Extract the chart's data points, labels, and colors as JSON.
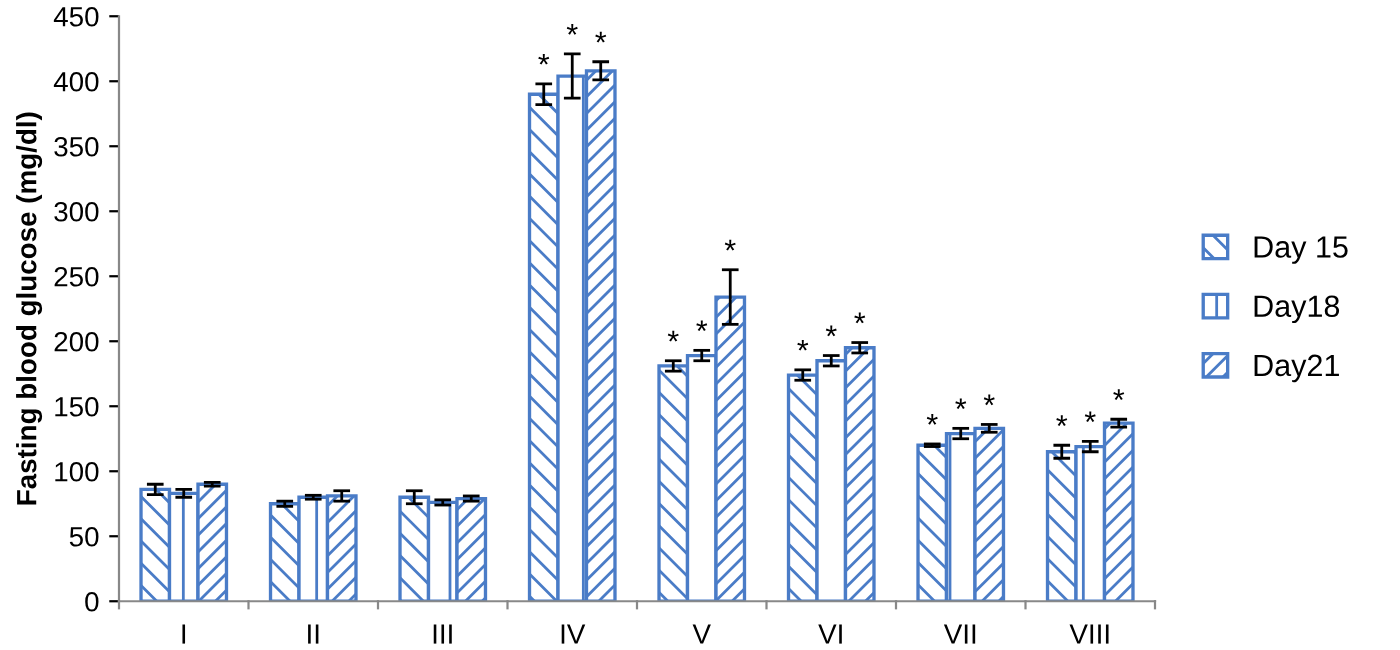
{
  "chart_data": {
    "type": "bar",
    "ylabel": "Fasting blood glucose (mg/dl)",
    "categories": [
      "I",
      "II",
      "III",
      "IV",
      "V",
      "VI",
      "VII",
      "VIII"
    ],
    "series": [
      {
        "name": "Day 15",
        "color": "#4a7cc7",
        "values": [
          86,
          75,
          80,
          390,
          181,
          174,
          120,
          115
        ],
        "errors": [
          4,
          2,
          5,
          8,
          4,
          4,
          1,
          5
        ],
        "value_labels": [
          null,
          null,
          null,
          "*",
          "*",
          "*",
          "*",
          "*"
        ]
      },
      {
        "name": "Day18",
        "color": "#4a7cc7",
        "values": [
          83,
          80,
          76,
          404,
          189,
          185,
          129,
          119
        ],
        "errors": [
          3,
          1.5,
          2,
          17,
          4,
          4,
          4,
          4
        ],
        "value_labels": [
          null,
          null,
          null,
          "*",
          "*",
          "*",
          "*",
          "*"
        ]
      },
      {
        "name": "Day21",
        "color": "#4a7cc7",
        "values": [
          90,
          81,
          79,
          408,
          234,
          195,
          133,
          137
        ],
        "errors": [
          1.5,
          4,
          2,
          7,
          21,
          4,
          3,
          3
        ],
        "value_labels": [
          null,
          null,
          null,
          "*",
          "*",
          "*",
          "*",
          "*"
        ]
      }
    ],
    "ylim": [
      0,
      450
    ],
    "yticks": [
      0,
      50,
      100,
      150,
      200,
      250,
      300,
      350,
      400,
      450
    ],
    "grid": false,
    "legend": "right"
  }
}
